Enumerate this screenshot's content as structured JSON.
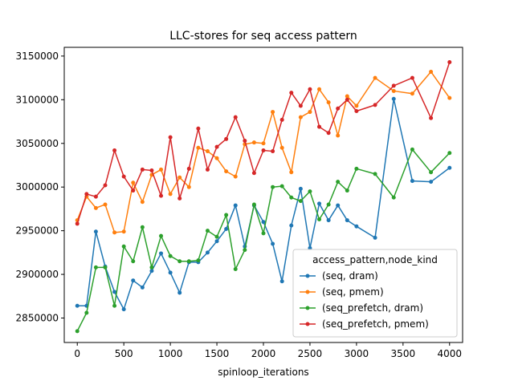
{
  "chart_data": {
    "type": "line",
    "title": "LLC-stores for seq access pattern",
    "xlabel": "spinloop_iterations",
    "ylabel": "",
    "xlim": [
      -140,
      4140
    ],
    "ylim": [
      2822000,
      3160000
    ],
    "xticks": [
      0,
      500,
      1000,
      1500,
      2000,
      2500,
      3000,
      3500,
      4000
    ],
    "yticks": [
      2850000,
      2900000,
      2950000,
      3000000,
      3050000,
      3100000,
      3150000
    ],
    "grid": false,
    "legend": {
      "title": "access_pattern,node_kind",
      "position": "lower-right"
    },
    "x": [
      0,
      100,
      200,
      300,
      400,
      500,
      600,
      700,
      800,
      900,
      1000,
      1100,
      1200,
      1300,
      1400,
      1500,
      1600,
      1700,
      1800,
      1900,
      2000,
      2100,
      2200,
      2300,
      2400,
      2500,
      2600,
      2700,
      2800,
      2900,
      3000,
      3200,
      3400,
      3600,
      3800,
      4000
    ],
    "series": [
      {
        "name": "(seq, dram)",
        "color": "#1f77b4",
        "values": [
          2864000,
          2864000,
          2949000,
          2909000,
          2880000,
          2860000,
          2893000,
          2885000,
          2904000,
          2924000,
          2902000,
          2879000,
          2914000,
          2914000,
          2925000,
          2938000,
          2952000,
          2979000,
          2932000,
          2979000,
          2960000,
          2935000,
          2892000,
          2956000,
          2998000,
          2930000,
          2981000,
          2962000,
          2979000,
          2962000,
          2955000,
          2942000,
          3101000,
          3007000,
          3006000,
          3022000
        ]
      },
      {
        "name": "(seq, pmem)",
        "color": "#ff7f0e",
        "values": [
          2962000,
          2989000,
          2976000,
          2980000,
          2948000,
          2949000,
          3005000,
          2983000,
          3014000,
          3020000,
          2992000,
          3011000,
          3000000,
          3045000,
          3041000,
          3033000,
          3018000,
          3012000,
          3049000,
          3051000,
          3050000,
          3086000,
          3045000,
          3017000,
          3080000,
          3086000,
          3112000,
          3097000,
          3059000,
          3104000,
          3093000,
          3125000,
          3110000,
          3107000,
          3132000,
          3102000
        ]
      },
      {
        "name": "(seq_prefetch, dram)",
        "color": "#2ca02c",
        "values": [
          2835000,
          2856000,
          2908000,
          2908000,
          2864000,
          2932000,
          2915000,
          2954000,
          2908000,
          2944000,
          2921000,
          2915000,
          2915000,
          2916000,
          2950000,
          2943000,
          2968000,
          2906000,
          2928000,
          2980000,
          2947000,
          3000000,
          3001000,
          2988000,
          2984000,
          2995000,
          2963000,
          2980000,
          3006000,
          2996000,
          3021000,
          3015000,
          2988000,
          3043000,
          3017000,
          3039000
        ]
      },
      {
        "name": "(seq_prefetch, pmem)",
        "color": "#d62728",
        "values": [
          2958000,
          2992000,
          2989000,
          3002000,
          3042000,
          3012000,
          2996000,
          3020000,
          3019000,
          2990000,
          3057000,
          2987000,
          3021000,
          3067000,
          3020000,
          3046000,
          3055000,
          3080000,
          3053000,
          3016000,
          3042000,
          3041000,
          3077000,
          3108000,
          3093000,
          3112000,
          3069000,
          3062000,
          3090000,
          3100000,
          3087000,
          3094000,
          3116000,
          3125000,
          3079000,
          3143000
        ]
      }
    ]
  }
}
